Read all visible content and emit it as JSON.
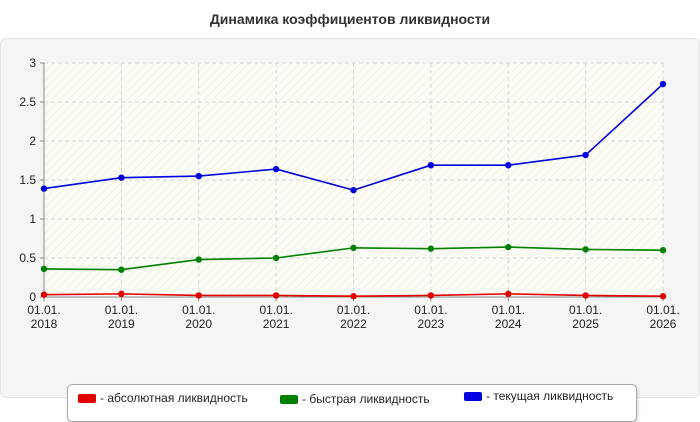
{
  "title": "Динамика коэффициентов ликвидности",
  "colors": {
    "absolute": "#e00000",
    "quick": "#008000",
    "current": "#0000e0"
  },
  "legend": [
    {
      "label": "- абсолютная ликвидность",
      "color": "#e00000"
    },
    {
      "label": "- быстрая ликвидность",
      "color": "#008000"
    },
    {
      "label": "- текущая ликвидность",
      "color": "#0000e0"
    }
  ],
  "chart_data": {
    "type": "line",
    "x": [
      "01.01.2018",
      "01.01.2019",
      "01.01.2020",
      "01.01.2021",
      "01.01.2022",
      "01.01.2023",
      "01.01.2024",
      "01.01.2025",
      "01.01.2026"
    ],
    "x_tick_labels": [
      [
        "01.01.",
        "2018"
      ],
      [
        "01.01.",
        "2019"
      ],
      [
        "01.01.",
        "2020"
      ],
      [
        "01.01.",
        "2021"
      ],
      [
        "01.01.",
        "2022"
      ],
      [
        "01.01.",
        "2023"
      ],
      [
        "01.01.",
        "2024"
      ],
      [
        "01.01.",
        "2025"
      ],
      [
        "01.01.",
        "2026"
      ]
    ],
    "y_ticks": [
      "0",
      "0.5",
      "1",
      "1.5",
      "2",
      "2.5",
      "3"
    ],
    "ylim": [
      0,
      3
    ],
    "grid": true,
    "legend_position": "bottom",
    "series": [
      {
        "name": "абсолютная ликвидность",
        "color": "#e00000",
        "values": [
          0.03,
          0.04,
          0.02,
          0.02,
          0.01,
          0.02,
          0.04,
          0.02,
          0.01
        ]
      },
      {
        "name": "быстрая ликвидность",
        "color": "#008000",
        "values": [
          0.36,
          0.35,
          0.48,
          0.5,
          0.63,
          0.62,
          0.64,
          0.61,
          0.6
        ]
      },
      {
        "name": "текущая ликвидность",
        "color": "#0000e0",
        "values": [
          1.39,
          1.53,
          1.55,
          1.64,
          1.37,
          1.69,
          1.69,
          1.82,
          2.73
        ]
      }
    ]
  }
}
